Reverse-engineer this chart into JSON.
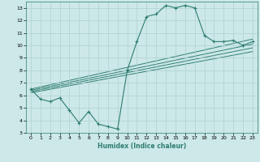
{
  "xlabel": "Humidex (Indice chaleur)",
  "bg_color": "#cce8e8",
  "grid_color": "#b0d0d0",
  "line_color": "#2e7d6e",
  "xlim": [
    -0.5,
    23.5
  ],
  "ylim": [
    3,
    13.5
  ],
  "yticks": [
    3,
    4,
    5,
    6,
    7,
    8,
    9,
    10,
    11,
    12,
    13
  ],
  "xticks": [
    0,
    1,
    2,
    3,
    4,
    5,
    6,
    7,
    8,
    9,
    10,
    11,
    12,
    13,
    14,
    15,
    16,
    17,
    18,
    19,
    20,
    21,
    22,
    23
  ],
  "main_line_x": [
    0,
    1,
    2,
    3,
    4,
    5,
    6,
    7,
    8,
    9,
    10,
    11,
    12,
    13,
    14,
    15,
    16,
    17,
    18,
    19,
    20,
    21,
    22,
    23
  ],
  "main_line_y": [
    6.5,
    5.7,
    5.5,
    5.8,
    4.8,
    3.8,
    4.7,
    3.7,
    3.5,
    3.3,
    8.0,
    10.3,
    12.3,
    12.5,
    13.2,
    13.0,
    13.2,
    13.0,
    10.8,
    10.3,
    10.3,
    10.4,
    10.0,
    10.3
  ],
  "straight_lines": [
    {
      "x": [
        0,
        23
      ],
      "y": [
        6.5,
        10.5
      ]
    },
    {
      "x": [
        0,
        23
      ],
      "y": [
        6.4,
        10.1
      ]
    },
    {
      "x": [
        0,
        23
      ],
      "y": [
        6.3,
        9.8
      ]
    },
    {
      "x": [
        0,
        23
      ],
      "y": [
        6.2,
        9.5
      ]
    }
  ]
}
